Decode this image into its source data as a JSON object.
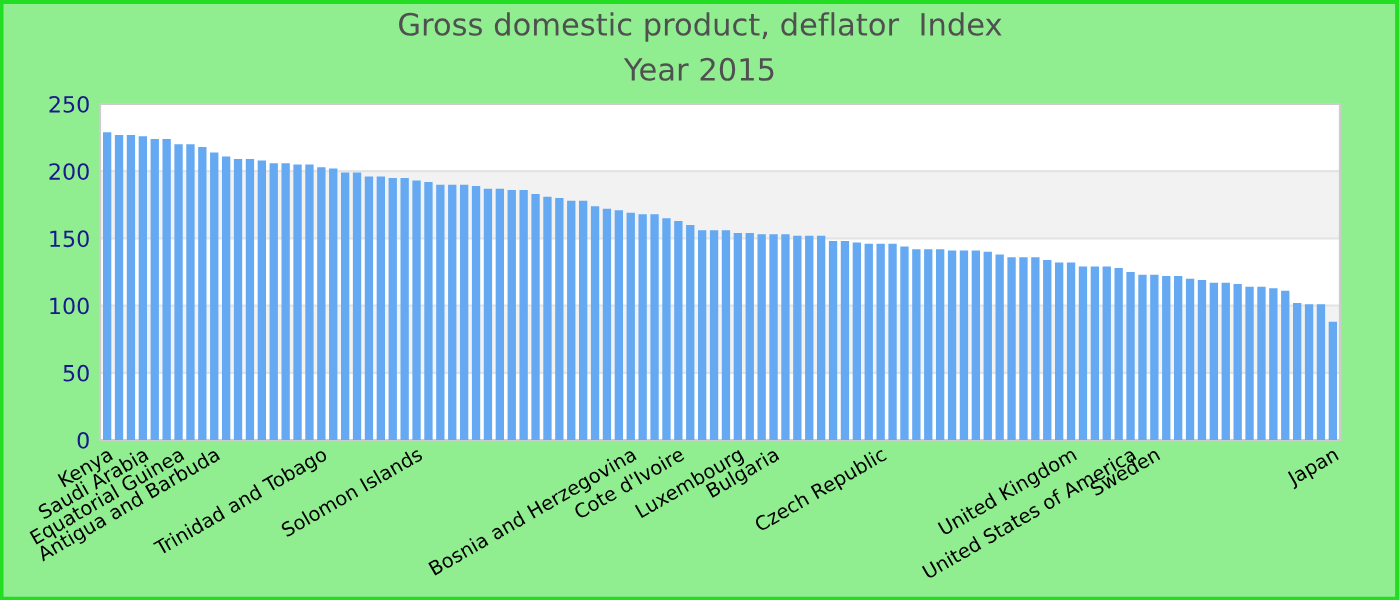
{
  "chart_data": {
    "type": "bar",
    "title": "Gross domestic product, deflator  Index",
    "subtitle": "Year 2015",
    "categories": [
      "Kenya",
      null,
      null,
      "Saudi Arabia",
      null,
      null,
      "Equatorial Guinea",
      null,
      null,
      "Antigua and Barbuda",
      null,
      null,
      null,
      null,
      null,
      null,
      null,
      null,
      "Trinidad and Tobago",
      null,
      null,
      null,
      null,
      null,
      null,
      null,
      "Solomon Islands",
      null,
      null,
      null,
      null,
      null,
      null,
      null,
      null,
      null,
      null,
      null,
      null,
      null,
      null,
      null,
      null,
      null,
      "Bosnia and Herzegovina",
      null,
      null,
      null,
      "Cote d'Ivoire",
      null,
      null,
      null,
      null,
      "Luxembourg",
      null,
      null,
      "Bulgaria",
      null,
      null,
      null,
      null,
      null,
      null,
      null,
      null,
      "Czech Republic",
      null,
      null,
      null,
      null,
      null,
      null,
      null,
      null,
      null,
      null,
      null,
      null,
      null,
      null,
      null,
      "United Kingdom",
      null,
      null,
      null,
      null,
      "United States of America",
      null,
      "Sweden",
      null,
      null,
      null,
      null,
      null,
      null,
      null,
      null,
      null,
      null,
      null,
      null,
      null,
      null,
      "Japan"
    ],
    "values": [
      229,
      227,
      227,
      226,
      224,
      224,
      220,
      220,
      218,
      214,
      211,
      209,
      209,
      208,
      206,
      206,
      205,
      205,
      203,
      202,
      199,
      199,
      196,
      196,
      195,
      195,
      193,
      192,
      190,
      190,
      190,
      189,
      187,
      187,
      186,
      186,
      183,
      181,
      180,
      178,
      178,
      174,
      172,
      171,
      169,
      168,
      168,
      165,
      163,
      160,
      156,
      156,
      156,
      154,
      154,
      153,
      153,
      153,
      152,
      152,
      152,
      148,
      148,
      147,
      146,
      146,
      146,
      144,
      142,
      142,
      142,
      141,
      141,
      141,
      140,
      138,
      136,
      136,
      136,
      134,
      132,
      132,
      129,
      129,
      129,
      128,
      125,
      123,
      123,
      122,
      122,
      120,
      119,
      117,
      117,
      116,
      114,
      114,
      113,
      111,
      102,
      101,
      101,
      88
    ],
    "color": "#64a9f2",
    "ylim": [
      0,
      250
    ],
    "yticks": [
      0,
      50,
      100,
      150,
      200,
      250
    ],
    "grid": "y"
  }
}
